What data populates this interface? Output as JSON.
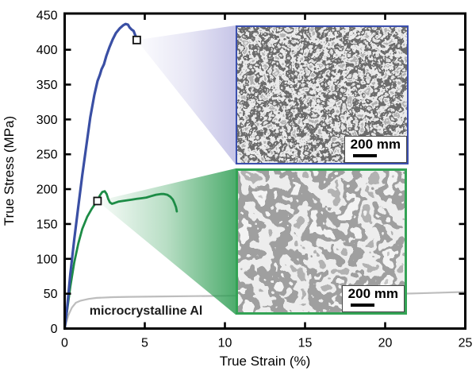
{
  "chart_data": {
    "type": "line",
    "title": "",
    "xlabel": "True Strain (%)",
    "ylabel": "True Stress (MPa)",
    "xlim": [
      0,
      25
    ],
    "ylim": [
      0,
      452
    ],
    "xticks": [
      0,
      5,
      10,
      15,
      20,
      25
    ],
    "yticks": [
      0,
      50,
      100,
      150,
      200,
      250,
      300,
      350,
      400,
      450
    ],
    "grid": false,
    "legend": "none",
    "series": [
      {
        "name": "microcrystalline-al",
        "color": "#bdbdbd",
        "points": [
          [
            0,
            0
          ],
          [
            0.1,
            8
          ],
          [
            0.25,
            20
          ],
          [
            0.45,
            30
          ],
          [
            0.7,
            37
          ],
          [
            1.0,
            40
          ],
          [
            1.5,
            42.5
          ],
          [
            2.0,
            44
          ],
          [
            3.0,
            45
          ],
          [
            4.0,
            45.5
          ],
          [
            6.0,
            46
          ],
          [
            8.0,
            46.5
          ],
          [
            10,
            47
          ],
          [
            12,
            47.5
          ],
          [
            14,
            48
          ],
          [
            16,
            48.5
          ],
          [
            18,
            49
          ],
          [
            20,
            49.5
          ],
          [
            22,
            50.5
          ],
          [
            23.5,
            51.5
          ],
          [
            25,
            52.5
          ]
        ]
      },
      {
        "name": "green-curve",
        "color": "#1d8c46",
        "points": [
          [
            0,
            0
          ],
          [
            0.15,
            25
          ],
          [
            0.35,
            60
          ],
          [
            0.6,
            95
          ],
          [
            0.85,
            122
          ],
          [
            1.1,
            143
          ],
          [
            1.4,
            160
          ],
          [
            1.7,
            172
          ],
          [
            1.9,
            179
          ],
          [
            2.05,
            183
          ],
          [
            2.2,
            191
          ],
          [
            2.35,
            196
          ],
          [
            2.5,
            197
          ],
          [
            2.62,
            193
          ],
          [
            2.72,
            186
          ],
          [
            2.82,
            181
          ],
          [
            2.95,
            179
          ],
          [
            3.1,
            180
          ],
          [
            3.35,
            182
          ],
          [
            3.6,
            183
          ],
          [
            3.9,
            184
          ],
          [
            4.2,
            185
          ],
          [
            4.5,
            186
          ],
          [
            4.8,
            187
          ],
          [
            5.1,
            188
          ],
          [
            5.4,
            190
          ],
          [
            5.7,
            192
          ],
          [
            6.0,
            193
          ],
          [
            6.2,
            193
          ],
          [
            6.4,
            192
          ],
          [
            6.6,
            189
          ],
          [
            6.75,
            185
          ],
          [
            6.85,
            180
          ],
          [
            6.95,
            174
          ],
          [
            7.0,
            168
          ]
        ]
      },
      {
        "name": "blue-curve",
        "color": "#3a4fa4",
        "points": [
          [
            0,
            0
          ],
          [
            0.15,
            28
          ],
          [
            0.35,
            78
          ],
          [
            0.6,
            128
          ],
          [
            0.85,
            175
          ],
          [
            1.1,
            220
          ],
          [
            1.35,
            262
          ],
          [
            1.6,
            303
          ],
          [
            1.85,
            335
          ],
          [
            2.05,
            355
          ],
          [
            2.2,
            364
          ],
          [
            2.3,
            372
          ],
          [
            2.45,
            379
          ],
          [
            2.6,
            391
          ],
          [
            2.8,
            404
          ],
          [
            3.0,
            415
          ],
          [
            3.2,
            424
          ],
          [
            3.45,
            431
          ],
          [
            3.65,
            435
          ],
          [
            3.8,
            437
          ],
          [
            3.95,
            436
          ],
          [
            4.05,
            432
          ],
          [
            4.18,
            429
          ],
          [
            4.3,
            427
          ],
          [
            4.4,
            421
          ],
          [
            4.5,
            416
          ],
          [
            4.56,
            411
          ]
        ]
      }
    ],
    "markers": [
      {
        "x": 4.5,
        "y": 414,
        "shape": "open-square"
      },
      {
        "x": 2.05,
        "y": 183,
        "shape": "open-square"
      }
    ],
    "annotations": [
      {
        "text": "microcrystalline Al",
        "x": 1.55,
        "y": 20
      }
    ],
    "callouts": [
      {
        "inset": "top",
        "apex": [
          4.5,
          414
        ],
        "color": "#8e8bd0"
      },
      {
        "inset": "bottom",
        "apex": [
          2.05,
          183
        ],
        "color": "#2f9e54"
      }
    ]
  },
  "insets": [
    {
      "id": "top",
      "border_color": "#3c50ae",
      "scale_label": "200 mm"
    },
    {
      "id": "bottom",
      "border_color": "#33a355",
      "scale_label": "200 mm"
    }
  ]
}
